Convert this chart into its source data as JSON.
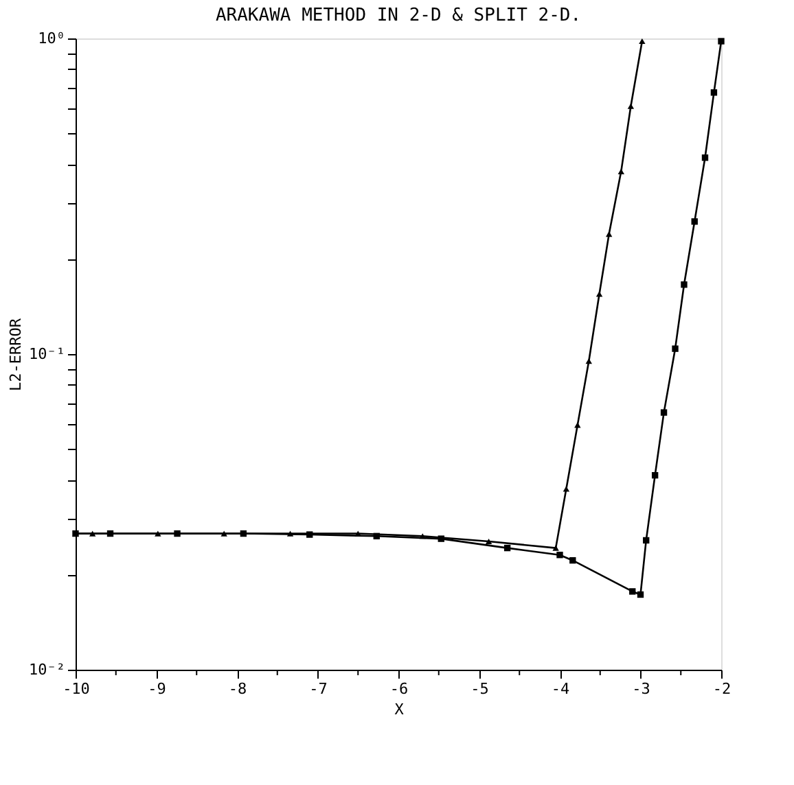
{
  "chart_data": {
    "type": "line",
    "title": "ARAKAWA METHOD IN 2-D & SPLIT 2-D.",
    "xlabel": "X",
    "ylabel": "L2-ERROR",
    "log": "y",
    "grid": false,
    "line_style": "solid",
    "xlim": [
      -10,
      -2
    ],
    "xticks": [
      -10,
      {
        "value": -9.5,
        "label": null
      },
      -9,
      {
        "value": -8.5,
        "label": null
      },
      -8,
      {
        "value": -7.5,
        "label": null
      },
      -7,
      {
        "value": -6.5,
        "label": null
      },
      -6,
      {
        "value": -5.5,
        "label": null
      },
      -5,
      {
        "value": -4.5,
        "label": null
      },
      -4,
      {
        "value": -3.5,
        "label": null
      },
      -3,
      {
        "value": -2.5,
        "label": null
      },
      -2
    ],
    "ylim": [
      0.01,
      1
    ],
    "yticks": [
      {
        "value": 0.01,
        "label": "10⁻²"
      },
      {
        "value": 0.02,
        "label": null
      },
      {
        "value": 0.03,
        "label": null
      },
      {
        "value": 0.04,
        "label": null
      },
      {
        "value": 0.05,
        "label": null
      },
      {
        "value": 0.06,
        "label": null
      },
      {
        "value": 0.07,
        "label": null
      },
      {
        "value": 0.08,
        "label": null
      },
      {
        "value": 0.09,
        "label": null
      },
      {
        "value": 0.1,
        "label": "10⁻¹"
      },
      {
        "value": 0.2,
        "label": null
      },
      {
        "value": 0.3,
        "label": null
      },
      {
        "value": 0.4,
        "label": null
      },
      {
        "value": 0.5,
        "label": null
      },
      {
        "value": 0.6,
        "label": null
      },
      {
        "value": 0.7,
        "label": null
      },
      {
        "value": 0.8,
        "label": null
      },
      {
        "value": 0.9,
        "label": null
      },
      {
        "value": 1,
        "label": "10⁰"
      }
    ],
    "series": [
      {
        "color": "#000000",
        "marker": "triangle",
        "x": [
          -10,
          -9.79,
          -8.98,
          -8.16,
          -7.34,
          -6.5,
          -5.7,
          -4.88,
          -4.05,
          -3.92,
          -3.78,
          -3.64,
          -3.51,
          -3.39,
          -3.24,
          -3.12,
          -2.98
        ],
        "values": [
          0.027,
          0.027,
          0.027,
          0.027,
          0.027,
          0.027,
          0.0265,
          0.0255,
          0.0243,
          0.0374,
          0.0596,
          0.095,
          0.155,
          0.24,
          0.379,
          0.61,
          0.98
        ]
      },
      {
        "color": "#000000",
        "marker": "square",
        "x": [
          -10,
          -9.57,
          -8.74,
          -7.92,
          -7.1,
          -6.27,
          -5.47,
          -4.65,
          -4.0,
          -3.84,
          -3.1,
          -3.0,
          -2.93,
          -2.82,
          -2.71,
          -2.57,
          -2.46,
          -2.33,
          -2.2,
          -2.09,
          -2.0
        ],
        "values": [
          0.027,
          0.027,
          0.027,
          0.027,
          0.0268,
          0.0265,
          0.026,
          0.0243,
          0.0231,
          0.0222,
          0.0177,
          0.0173,
          0.0257,
          0.0413,
          0.0653,
          0.104,
          0.166,
          0.263,
          0.419,
          0.674,
          0.98
        ]
      }
    ]
  }
}
